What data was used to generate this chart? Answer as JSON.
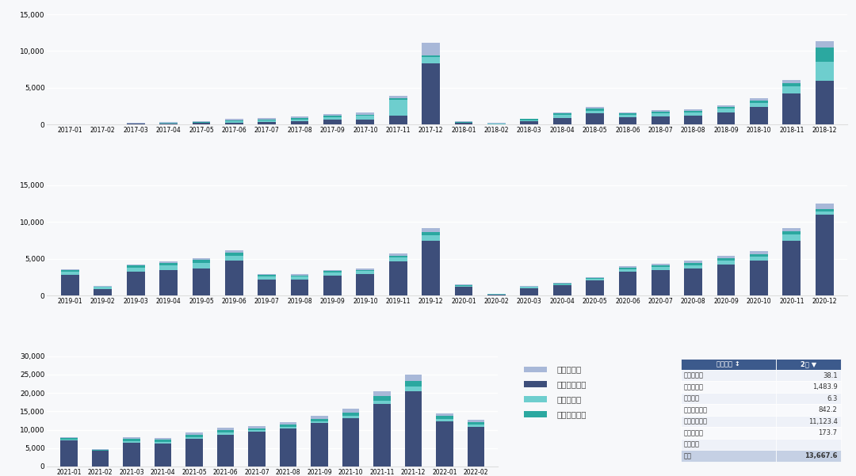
{
  "colors": {
    "phev_passenger": "#A8B8D8",
    "bev_passenger": "#3D4E7A",
    "bev_bus": "#6ECECE",
    "bev_special": "#2BA8A0"
  },
  "background": "#F7F8FA",
  "row1": {
    "months": [
      "2017-01",
      "2017-02",
      "2017-03",
      "2017-04",
      "2017-05",
      "2017-06",
      "2017-07",
      "2017-08",
      "2017-09",
      "2017-10",
      "2017-11",
      "2017-12",
      "2018-01",
      "2018-02",
      "2018-03",
      "2018-04",
      "2018-05",
      "2018-06",
      "2018-07",
      "2018-08",
      "2018-09",
      "2018-10",
      "2018-11",
      "2018-12"
    ],
    "phev_passenger": [
      20,
      15,
      50,
      80,
      120,
      180,
      200,
      230,
      280,
      280,
      350,
      1800,
      80,
      30,
      80,
      150,
      220,
      160,
      180,
      210,
      250,
      280,
      500,
      800
    ],
    "bev_passenger": [
      10,
      10,
      100,
      150,
      200,
      300,
      350,
      450,
      650,
      700,
      1200,
      8300,
      200,
      80,
      450,
      900,
      1500,
      1000,
      1150,
      1200,
      1700,
      2400,
      4200,
      6000
    ],
    "bev_bus": [
      5,
      5,
      30,
      60,
      80,
      150,
      200,
      250,
      400,
      480,
      2200,
      900,
      80,
      60,
      150,
      400,
      400,
      300,
      380,
      450,
      450,
      550,
      1000,
      2500
    ],
    "bev_special": [
      5,
      5,
      30,
      60,
      80,
      150,
      150,
      200,
      150,
      150,
      150,
      150,
      80,
      40,
      150,
      250,
      300,
      230,
      230,
      230,
      230,
      320,
      400,
      2000
    ]
  },
  "row2": {
    "months": [
      "2019-01",
      "2019-02",
      "2019-03",
      "2019-04",
      "2019-05",
      "2019-06",
      "2019-07",
      "2019-08",
      "2019-09",
      "2019-10",
      "2019-11",
      "2019-12",
      "2020-01",
      "2020-02",
      "2020-03",
      "2020-04",
      "2020-05",
      "2020-06",
      "2020-07",
      "2020-08",
      "2020-09",
      "2020-10",
      "2020-11",
      "2020-12"
    ],
    "phev_passenger": [
      80,
      30,
      150,
      200,
      250,
      300,
      150,
      150,
      200,
      200,
      300,
      500,
      80,
      15,
      40,
      80,
      120,
      220,
      260,
      300,
      340,
      380,
      450,
      700
    ],
    "bev_passenger": [
      2800,
      900,
      3200,
      3500,
      3700,
      4700,
      2200,
      2200,
      2700,
      2900,
      4600,
      7500,
      1200,
      150,
      1000,
      1400,
      2100,
      3200,
      3500,
      3700,
      4200,
      4700,
      7500,
      11000
    ],
    "bev_bus": [
      450,
      250,
      550,
      620,
      720,
      720,
      350,
      350,
      440,
      440,
      550,
      720,
      120,
      40,
      160,
      160,
      200,
      340,
      340,
      430,
      530,
      620,
      800,
      450
    ],
    "bev_special": [
      250,
      80,
      350,
      350,
      430,
      430,
      250,
      170,
      170,
      170,
      260,
      430,
      80,
      25,
      80,
      120,
      120,
      250,
      250,
      300,
      340,
      340,
      430,
      350
    ]
  },
  "row3": {
    "months": [
      "2021-01",
      "2021-02",
      "2021-03",
      "2021-04",
      "2021-05",
      "2021-06",
      "2021-07",
      "2021-08",
      "2021-09",
      "2021-10",
      "2021-11",
      "2021-12",
      "2022-01",
      "2022-02"
    ],
    "phev_passenger": [
      250,
      120,
      400,
      500,
      600,
      680,
      580,
      680,
      850,
      1050,
      1300,
      1750,
      700,
      500
    ],
    "bev_passenger": [
      7000,
      4200,
      6500,
      6300,
      7500,
      8700,
      9400,
      10400,
      11800,
      13200,
      17000,
      20500,
      12200,
      10800
    ],
    "bev_bus": [
      350,
      170,
      420,
      420,
      420,
      520,
      420,
      420,
      520,
      600,
      900,
      1350,
      700,
      600
    ],
    "bev_special": [
      420,
      250,
      600,
      600,
      700,
      700,
      600,
      600,
      700,
      880,
      1350,
      1350,
      880,
      700
    ]
  },
  "legend_labels": [
    "插电乘用车",
    "纯电动乘用车",
    "纯电动客车",
    "纯电动专用车"
  ],
  "table_header": [
    "车型种类 ↕",
    "2月 ▼"
  ],
  "table_rows": [
    [
      "插混专用车",
      "38.1"
    ],
    [
      "插混乘用车",
      "1,483.9"
    ],
    [
      "插混客车",
      "6.3"
    ],
    [
      "纯电动专用车",
      "842.2"
    ],
    [
      "纯电动乘用车",
      "11,123.4"
    ],
    [
      "纯电动客车",
      "173.7"
    ],
    [
      "车型种类",
      ""
    ],
    [
      "合计",
      "13,667.6"
    ]
  ]
}
